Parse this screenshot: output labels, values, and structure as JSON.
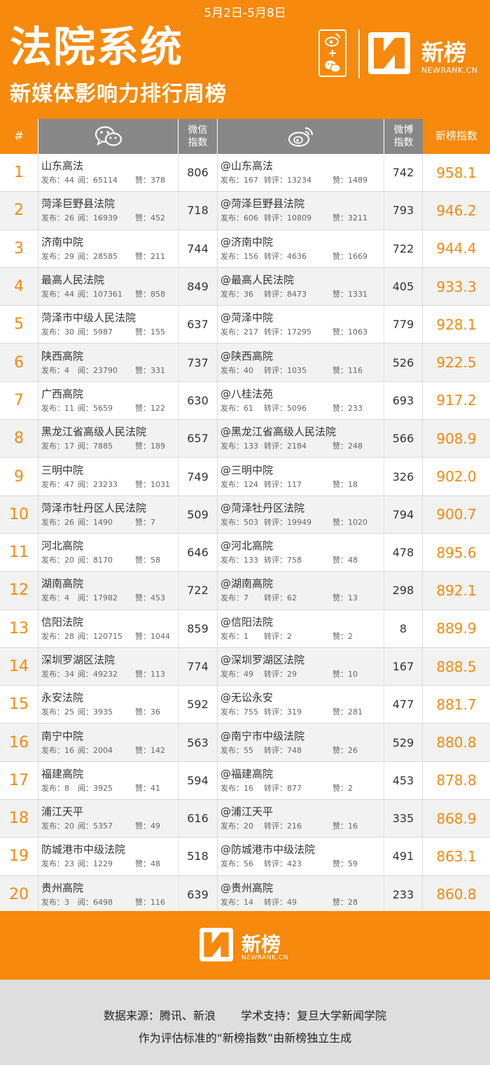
{
  "header": {
    "date_range": "5月2日-5月8日",
    "title_main": "法院系统",
    "title_sub": "新媒体影响力排行周榜",
    "platform_plus": "+",
    "brand_name": "新榜",
    "brand_url": "NEWRANK.CN"
  },
  "table": {
    "headers": {
      "rank": "#",
      "wechat_index": "微信\n指数",
      "weibo_index": "微博\n指数",
      "score": "新榜指数"
    },
    "wx_labels": {
      "posts": "发布：",
      "reads": "阅：",
      "likes": "赞："
    },
    "wb_labels": {
      "posts": "发布：",
      "reposts": "转评：",
      "likes": "赞："
    },
    "rows": [
      {
        "rank": "1",
        "wx_name": "山东高法",
        "wx_posts": "44",
        "wx_reads": "65114",
        "wx_likes": "378",
        "wx_index": "806",
        "wb_name": "@山东高法",
        "wb_posts": "167",
        "wb_reposts": "13234",
        "wb_likes": "1489",
        "wb_index": "742",
        "score": "958.1"
      },
      {
        "rank": "2",
        "wx_name": "菏泽巨野县法院",
        "wx_posts": "26",
        "wx_reads": "16939",
        "wx_likes": "452",
        "wx_index": "718",
        "wb_name": "@菏泽巨野县法院",
        "wb_posts": "606",
        "wb_reposts": "10809",
        "wb_likes": "3211",
        "wb_index": "793",
        "score": "946.2"
      },
      {
        "rank": "3",
        "wx_name": "济南中院",
        "wx_posts": "29",
        "wx_reads": "28585",
        "wx_likes": "211",
        "wx_index": "744",
        "wb_name": "@济南中院",
        "wb_posts": "156",
        "wb_reposts": "4636",
        "wb_likes": "1669",
        "wb_index": "722",
        "score": "944.4"
      },
      {
        "rank": "4",
        "wx_name": "最高人民法院",
        "wx_posts": "44",
        "wx_reads": "107361",
        "wx_likes": "858",
        "wx_index": "849",
        "wb_name": "@最高人民法院",
        "wb_posts": "36",
        "wb_reposts": "8473",
        "wb_likes": "1331",
        "wb_index": "405",
        "score": "933.3"
      },
      {
        "rank": "5",
        "wx_name": "菏泽市中级人民法院",
        "wx_posts": "30",
        "wx_reads": "5987",
        "wx_likes": "155",
        "wx_index": "637",
        "wb_name": "@菏泽中院",
        "wb_posts": "217",
        "wb_reposts": "17295",
        "wb_likes": "1063",
        "wb_index": "779",
        "score": "928.1"
      },
      {
        "rank": "6",
        "wx_name": "陕西高院",
        "wx_posts": "4",
        "wx_reads": "23790",
        "wx_likes": "331",
        "wx_index": "737",
        "wb_name": "@陕西高院",
        "wb_posts": "40",
        "wb_reposts": "1035",
        "wb_likes": "116",
        "wb_index": "526",
        "score": "922.5"
      },
      {
        "rank": "7",
        "wx_name": "广西高院",
        "wx_posts": "11",
        "wx_reads": "5659",
        "wx_likes": "122",
        "wx_index": "630",
        "wb_name": "@八桂法苑",
        "wb_posts": "61",
        "wb_reposts": "5096",
        "wb_likes": "233",
        "wb_index": "693",
        "score": "917.2"
      },
      {
        "rank": "8",
        "wx_name": "黑龙江省高级人民法院",
        "wx_posts": "17",
        "wx_reads": "7885",
        "wx_likes": "189",
        "wx_index": "657",
        "wb_name": "@黑龙江省高级人民法院",
        "wb_posts": "133",
        "wb_reposts": "2184",
        "wb_likes": "248",
        "wb_index": "566",
        "score": "908.9"
      },
      {
        "rank": "9",
        "wx_name": "三明中院",
        "wx_posts": "47",
        "wx_reads": "23233",
        "wx_likes": "1031",
        "wx_index": "749",
        "wb_name": "@三明中院",
        "wb_posts": "124",
        "wb_reposts": "117",
        "wb_likes": "18",
        "wb_index": "326",
        "score": "902.0"
      },
      {
        "rank": "10",
        "wx_name": "菏泽市牡丹区人民法院",
        "wx_posts": "26",
        "wx_reads": "1490",
        "wx_likes": "7",
        "wx_index": "509",
        "wb_name": "@菏泽牡丹区法院",
        "wb_posts": "503",
        "wb_reposts": "19949",
        "wb_likes": "1020",
        "wb_index": "794",
        "score": "900.7"
      },
      {
        "rank": "11",
        "wx_name": "河北高院",
        "wx_posts": "20",
        "wx_reads": "8170",
        "wx_likes": "58",
        "wx_index": "646",
        "wb_name": "@河北高院",
        "wb_posts": "133",
        "wb_reposts": "758",
        "wb_likes": "48",
        "wb_index": "478",
        "score": "895.6"
      },
      {
        "rank": "12",
        "wx_name": "湖南高院",
        "wx_posts": "4",
        "wx_reads": "17982",
        "wx_likes": "453",
        "wx_index": "722",
        "wb_name": "@湖南高院",
        "wb_posts": "7",
        "wb_reposts": "62",
        "wb_likes": "13",
        "wb_index": "298",
        "score": "892.1"
      },
      {
        "rank": "13",
        "wx_name": "信阳法院",
        "wx_posts": "28",
        "wx_reads": "120715",
        "wx_likes": "1044",
        "wx_index": "859",
        "wb_name": "@信阳法院",
        "wb_posts": "1",
        "wb_reposts": "2",
        "wb_likes": "2",
        "wb_index": "8",
        "score": "889.9"
      },
      {
        "rank": "14",
        "wx_name": "深圳罗湖区法院",
        "wx_posts": "34",
        "wx_reads": "49232",
        "wx_likes": "113",
        "wx_index": "774",
        "wb_name": "@深圳罗湖区法院",
        "wb_posts": "49",
        "wb_reposts": "29",
        "wb_likes": "10",
        "wb_index": "167",
        "score": "888.5"
      },
      {
        "rank": "15",
        "wx_name": "永安法院",
        "wx_posts": "25",
        "wx_reads": "3935",
        "wx_likes": "36",
        "wx_index": "592",
        "wb_name": "@无讼永安",
        "wb_posts": "755",
        "wb_reposts": "319",
        "wb_likes": "281",
        "wb_index": "477",
        "score": "881.7"
      },
      {
        "rank": "16",
        "wx_name": "南宁中院",
        "wx_posts": "16",
        "wx_reads": "2004",
        "wx_likes": "142",
        "wx_index": "563",
        "wb_name": "@南宁市中级法院",
        "wb_posts": "55",
        "wb_reposts": "748",
        "wb_likes": "26",
        "wb_index": "529",
        "score": "880.8"
      },
      {
        "rank": "17",
        "wx_name": "福建高院",
        "wx_posts": "8",
        "wx_reads": "3925",
        "wx_likes": "41",
        "wx_index": "594",
        "wb_name": "@福建高院",
        "wb_posts": "16",
        "wb_reposts": "877",
        "wb_likes": "2",
        "wb_index": "453",
        "score": "878.8"
      },
      {
        "rank": "18",
        "wx_name": "浦江天平",
        "wx_posts": "20",
        "wx_reads": "5357",
        "wx_likes": "49",
        "wx_index": "616",
        "wb_name": "@浦江天平",
        "wb_posts": "20",
        "wb_reposts": "216",
        "wb_likes": "16",
        "wb_index": "335",
        "score": "868.9"
      },
      {
        "rank": "19",
        "wx_name": "防城港市中级法院",
        "wx_posts": "23",
        "wx_reads": "1229",
        "wx_likes": "48",
        "wx_index": "518",
        "wb_name": "@防城港市中级法院",
        "wb_posts": "56",
        "wb_reposts": "423",
        "wb_likes": "59",
        "wb_index": "491",
        "score": "863.1"
      },
      {
        "rank": "20",
        "wx_name": "贵州高院",
        "wx_posts": "3",
        "wx_reads": "6498",
        "wx_likes": "116",
        "wx_index": "639",
        "wb_name": "@贵州高院",
        "wb_posts": "14",
        "wb_reposts": "49",
        "wb_likes": "28",
        "wb_index": "233",
        "score": "860.8"
      }
    ]
  },
  "footer": {
    "brand_name": "新榜",
    "brand_url": "NEWRANK.CN",
    "source_label": "数据来源：腾讯、新浪",
    "support_label": "学术支持：复旦大学新闻学院",
    "note": "作为评估标准的“新榜指数”由新榜独立生成"
  },
  "colors": {
    "accent": "#f7890c",
    "header_gray": "#878787",
    "row_alt": "#f2f2f2",
    "footer_gray": "#dedede"
  },
  "icons": {
    "wechat": "wechat-icon",
    "weibo": "weibo-icon",
    "logo": "newrank-logo-icon"
  }
}
